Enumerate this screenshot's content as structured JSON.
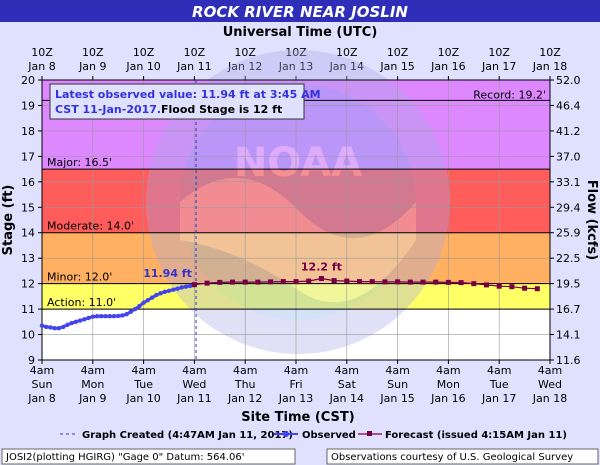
{
  "header": {
    "title": "ROCK RIVER NEAR JOSLIN",
    "subtitle": "Universal Time (UTC)"
  },
  "footer": {
    "site_time_label": "Site Time (CST)",
    "legend_graph_created": "Graph Created (4:47AM Jan 11, 2017)",
    "legend_observed": "Observed",
    "legend_forecast": "Forecast (issued 4:15AM Jan 11)",
    "datum_text": "JOSI2(plotting HGIRG) \"Gage 0\" Datum: 564.06'",
    "courtesy_text": "Observations courtesy of U.S. Geological Survey"
  },
  "info_box": {
    "line1": "Latest observed value: 11.94 ft at 3:45 AM",
    "line2a": "CST 11-Jan-2017.",
    "line2b": "Flood Stage is 12 ft"
  },
  "colors": {
    "record": "#dd8fea",
    "major": "#dd88ff",
    "moderate": "#ff5c5c",
    "minor": "#ffb060",
    "action": "#ffff66",
    "normal": "#ffffff",
    "observed": "#4444ee",
    "forecast": "#770044",
    "annotation": "#3333cc",
    "background": "#e0e0ff"
  },
  "chart_data": {
    "type": "line",
    "title": "ROCK RIVER NEAR JOSLIN",
    "xlabel": "Site Time (CST)",
    "ylabel": "Stage (ft)",
    "y2label": "Flow (kcfs)",
    "ylim": [
      9,
      20
    ],
    "y_ticks": [
      "9",
      "10",
      "11",
      "12",
      "13",
      "14",
      "15",
      "16",
      "17",
      "18",
      "19",
      "20"
    ],
    "y2_ticks": [
      "11.6",
      "14.1",
      "16.7",
      "19.5",
      "22.5",
      "25.9",
      "29.4",
      "33.1",
      "37.0",
      "41.2",
      "46.4",
      "52.0"
    ],
    "x_ticks_bottom": [
      {
        "l1": "4am",
        "l2": "Sun",
        "l3": "Jan 8"
      },
      {
        "l1": "4am",
        "l2": "Mon",
        "l3": "Jan 9"
      },
      {
        "l1": "4am",
        "l2": "Tue",
        "l3": "Jan 10"
      },
      {
        "l1": "4am",
        "l2": "Wed",
        "l3": "Jan 11"
      },
      {
        "l1": "4am",
        "l2": "Thu",
        "l3": "Jan 12"
      },
      {
        "l1": "4am",
        "l2": "Fri",
        "l3": "Jan 13"
      },
      {
        "l1": "4am",
        "l2": "Sat",
        "l3": "Jan 14"
      },
      {
        "l1": "4am",
        "l2": "Sun",
        "l3": "Jan 15"
      },
      {
        "l1": "4am",
        "l2": "Mon",
        "l3": "Jan 16"
      },
      {
        "l1": "4am",
        "l2": "Tue",
        "l3": "Jan 17"
      },
      {
        "l1": "4am",
        "l2": "Wed",
        "l3": "Jan 18"
      }
    ],
    "x_ticks_top": [
      {
        "l1": "10Z",
        "l2": "Jan 8"
      },
      {
        "l1": "10Z",
        "l2": "Jan 9"
      },
      {
        "l1": "10Z",
        "l2": "Jan 10"
      },
      {
        "l1": "10Z",
        "l2": "Jan 11"
      },
      {
        "l1": "10Z",
        "l2": "Jan 12"
      },
      {
        "l1": "10Z",
        "l2": "Jan 13"
      },
      {
        "l1": "10Z",
        "l2": "Jan 14"
      },
      {
        "l1": "10Z",
        "l2": "Jan 15"
      },
      {
        "l1": "10Z",
        "l2": "Jan 16"
      },
      {
        "l1": "10Z",
        "l2": "Jan 17"
      },
      {
        "l1": "10Z",
        "l2": "Jan 18"
      }
    ],
    "thresholds": [
      {
        "name": "record",
        "label": "Record: 19.2'",
        "value": 19.2
      },
      {
        "name": "major",
        "label": "Major: 16.5'",
        "value": 16.5
      },
      {
        "name": "moderate",
        "label": "Moderate: 14.0'",
        "value": 14.0
      },
      {
        "name": "minor",
        "label": "Minor: 12.0'",
        "value": 12.0
      },
      {
        "name": "action",
        "label": "Action: 11.0'",
        "value": 11.0
      }
    ],
    "series": [
      {
        "name": "Observed",
        "x": [
          "2017-01-08 04:00",
          "2017-01-08 06:00",
          "2017-01-08 08:00",
          "2017-01-08 10:00",
          "2017-01-08 12:00",
          "2017-01-08 14:00",
          "2017-01-08 16:00",
          "2017-01-08 18:00",
          "2017-01-08 20:00",
          "2017-01-08 22:00",
          "2017-01-09 00:00",
          "2017-01-09 02:00",
          "2017-01-09 04:00",
          "2017-01-09 06:00",
          "2017-01-09 08:00",
          "2017-01-09 10:00",
          "2017-01-09 12:00",
          "2017-01-09 14:00",
          "2017-01-09 16:00",
          "2017-01-09 18:00",
          "2017-01-09 20:00",
          "2017-01-09 22:00",
          "2017-01-10 00:00",
          "2017-01-10 02:00",
          "2017-01-10 04:00",
          "2017-01-10 06:00",
          "2017-01-10 08:00",
          "2017-01-10 10:00",
          "2017-01-10 12:00",
          "2017-01-10 14:00",
          "2017-01-10 16:00",
          "2017-01-10 18:00",
          "2017-01-10 20:00",
          "2017-01-10 22:00",
          "2017-01-11 00:00",
          "2017-01-11 02:00",
          "2017-01-11 03:45"
        ],
        "values": [
          10.35,
          10.3,
          10.28,
          10.25,
          10.25,
          10.3,
          10.38,
          10.45,
          10.5,
          10.55,
          10.6,
          10.65,
          10.7,
          10.72,
          10.72,
          10.72,
          10.72,
          10.72,
          10.73,
          10.75,
          10.8,
          10.9,
          11.0,
          11.12,
          11.25,
          11.35,
          11.45,
          11.55,
          11.62,
          11.68,
          11.72,
          11.76,
          11.8,
          11.85,
          11.88,
          11.91,
          11.94
        ]
      },
      {
        "name": "Forecast",
        "x": [
          "2017-01-11 04:00",
          "2017-01-11 10:00",
          "2017-01-11 16:00",
          "2017-01-11 22:00",
          "2017-01-12 04:00",
          "2017-01-12 10:00",
          "2017-01-12 16:00",
          "2017-01-12 22:00",
          "2017-01-13 04:00",
          "2017-01-13 10:00",
          "2017-01-13 16:00",
          "2017-01-13 22:00",
          "2017-01-14 04:00",
          "2017-01-14 10:00",
          "2017-01-14 16:00",
          "2017-01-14 22:00",
          "2017-01-15 04:00",
          "2017-01-15 10:00",
          "2017-01-15 16:00",
          "2017-01-15 22:00",
          "2017-01-16 04:00",
          "2017-01-16 10:00",
          "2017-01-16 16:00",
          "2017-01-16 22:00",
          "2017-01-17 04:00",
          "2017-01-17 10:00",
          "2017-01-17 16:00",
          "2017-01-17 22:00"
        ],
        "values": [
          11.96,
          12.02,
          12.05,
          12.06,
          12.06,
          12.06,
          12.07,
          12.08,
          12.08,
          12.1,
          12.2,
          12.12,
          12.1,
          12.08,
          12.08,
          12.07,
          12.07,
          12.06,
          12.06,
          12.06,
          12.05,
          12.04,
          12.0,
          11.95,
          11.9,
          11.88,
          11.82,
          11.8
        ]
      }
    ],
    "annotations": [
      {
        "text": "11.94 ft",
        "x": "2017-01-11 03:45",
        "y": 11.94
      },
      {
        "text": "12.2 ft",
        "x": "2017-01-13 16:00",
        "y": 12.2
      }
    ],
    "graph_created": "2017-01-11 04:47"
  }
}
